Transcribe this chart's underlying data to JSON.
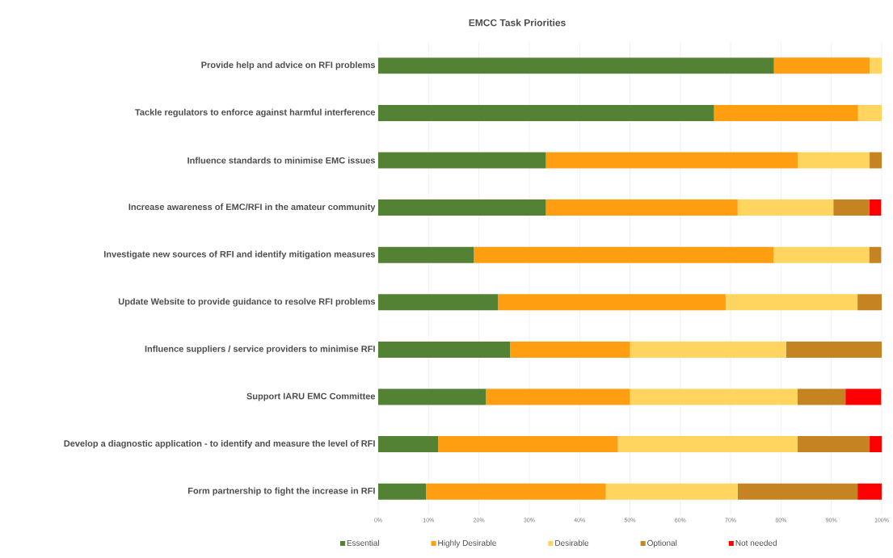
{
  "chart_data": {
    "type": "bar",
    "orientation": "horizontal",
    "stacked": true,
    "title": "EMCC Task Priorities",
    "categories": [
      "Provide help and advice on RFI problems",
      "Tackle regulators to enforce against harmful interference",
      "Influence standards to minimise EMC issues",
      "Increase awareness of EMC/RFI  in the amateur community",
      "Investigate new sources of RFI  and identify mitigation measures",
      "Update Website to provide guidance to resolve RFI problems",
      "Influence suppliers / service providers to minimise RFI",
      "Support IARU EMC Committee",
      "Develop a diagnostic application - to identify and measure the level of RFI",
      "Form partnership to fight the increase in RFI"
    ],
    "series": [
      {
        "name": "Essential",
        "color": "#548235",
        "values": [
          78.6,
          66.7,
          33.3,
          33.3,
          19.0,
          23.8,
          26.2,
          21.4,
          11.9,
          9.5
        ]
      },
      {
        "name": "Highly Desirable",
        "color": "#ff9e10",
        "values": [
          19.0,
          28.6,
          50.0,
          38.1,
          59.5,
          45.2,
          23.8,
          28.6,
          35.7,
          35.7
        ]
      },
      {
        "name": "Desirable",
        "color": "#ffd55f",
        "values": [
          2.4,
          4.8,
          14.3,
          19.0,
          19.0,
          26.2,
          31.0,
          33.3,
          35.7,
          26.2
        ]
      },
      {
        "name": "Optional",
        "color": "#c58322",
        "values": [
          0,
          0,
          2.4,
          7.1,
          2.4,
          4.8,
          19.0,
          9.5,
          14.3,
          23.8
        ]
      },
      {
        "name": "Not needed",
        "color": "#ff0000",
        "values": [
          0,
          0,
          0,
          2.4,
          0,
          0,
          0,
          7.1,
          2.4,
          4.8
        ]
      }
    ],
    "xlim": [
      0,
      100
    ],
    "xticks": [
      {
        "value": 0,
        "label": "0%"
      },
      {
        "value": 10,
        "label": "10%"
      },
      {
        "value": 20,
        "label": "20%"
      },
      {
        "value": 30,
        "label": "30%"
      },
      {
        "value": 40,
        "label": "40%"
      },
      {
        "value": 50,
        "label": "50%"
      },
      {
        "value": 60,
        "label": "60%"
      },
      {
        "value": 70,
        "label": "70%"
      },
      {
        "value": 80,
        "label": "80%"
      },
      {
        "value": 90,
        "label": "90%"
      },
      {
        "value": 100,
        "label": "100%"
      }
    ],
    "grid": "x",
    "legend": "bottom"
  }
}
